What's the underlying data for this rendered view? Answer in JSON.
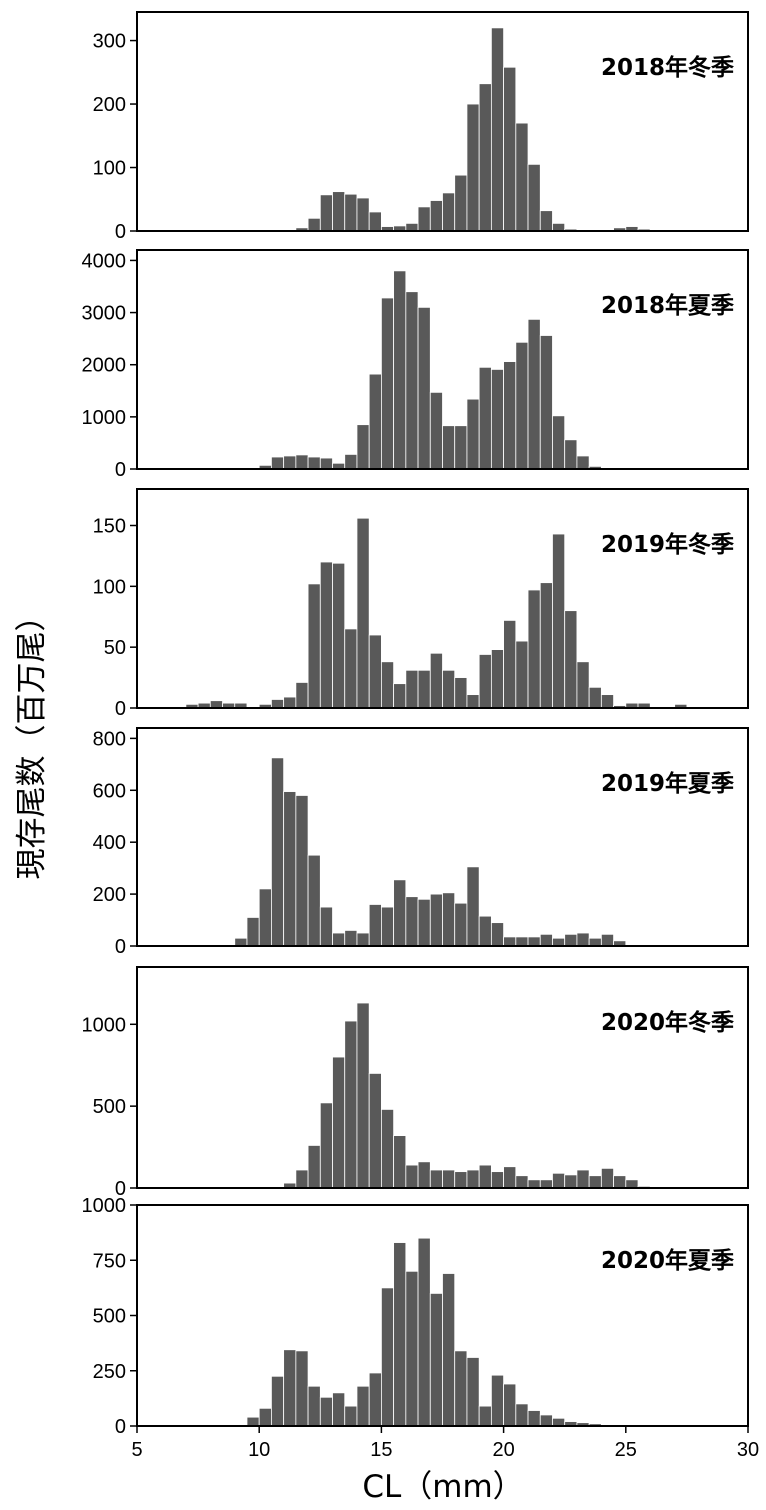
{
  "chart_data": {
    "type": "bar",
    "x_axis": {
      "label": "CL（mm）",
      "lim": [
        5,
        30
      ],
      "ticks": [
        5,
        10,
        15,
        20,
        25,
        30
      ],
      "bin_width": 0.5
    },
    "y_axis": {
      "label": "現存尾数（百万尾）"
    },
    "bar_color": "#595959",
    "panels": [
      {
        "label": "2018年冬季",
        "ylim": [
          0,
          345
        ],
        "yticks": [
          0,
          100,
          200,
          300
        ],
        "bins": [
          [
            11,
            2
          ],
          [
            11.5,
            5
          ],
          [
            12,
            20
          ],
          [
            12.5,
            57
          ],
          [
            13,
            62
          ],
          [
            13.5,
            58
          ],
          [
            14,
            52
          ],
          [
            14.5,
            30
          ],
          [
            15,
            7
          ],
          [
            15.5,
            8
          ],
          [
            16,
            12
          ],
          [
            16.5,
            38
          ],
          [
            17,
            48
          ],
          [
            17.5,
            60
          ],
          [
            18,
            88
          ],
          [
            18.5,
            200
          ],
          [
            19,
            232
          ],
          [
            19.5,
            320
          ],
          [
            20,
            258
          ],
          [
            20.5,
            170
          ],
          [
            21,
            105
          ],
          [
            21.5,
            32
          ],
          [
            22,
            12
          ],
          [
            22.5,
            3
          ],
          [
            23,
            2
          ],
          [
            24,
            2
          ],
          [
            24.5,
            5
          ],
          [
            25,
            7
          ],
          [
            25.5,
            3
          ],
          [
            26,
            2
          ]
        ]
      },
      {
        "label": "2018年夏季",
        "ylim": [
          0,
          4200
        ],
        "yticks": [
          0,
          1000,
          2000,
          3000,
          4000
        ],
        "bins": [
          [
            9.5,
            10
          ],
          [
            10,
            70
          ],
          [
            10.5,
            230
          ],
          [
            11,
            250
          ],
          [
            11.5,
            270
          ],
          [
            12,
            230
          ],
          [
            12.5,
            210
          ],
          [
            13,
            110
          ],
          [
            13.5,
            280
          ],
          [
            14,
            850
          ],
          [
            14.5,
            1820
          ],
          [
            15,
            3280
          ],
          [
            15.5,
            3800
          ],
          [
            16,
            3400
          ],
          [
            16.5,
            3100
          ],
          [
            17,
            1470
          ],
          [
            17.5,
            830
          ],
          [
            18,
            830
          ],
          [
            18.5,
            1340
          ],
          [
            19,
            1950
          ],
          [
            19.5,
            1910
          ],
          [
            20,
            2060
          ],
          [
            20.5,
            2430
          ],
          [
            21,
            2870
          ],
          [
            21.5,
            2560
          ],
          [
            22,
            1020
          ],
          [
            22.5,
            560
          ],
          [
            23,
            250
          ],
          [
            23.5,
            50
          ],
          [
            24,
            10
          ],
          [
            26.5,
            10
          ]
        ]
      },
      {
        "label": "2019年冬季",
        "ylim": [
          0,
          180
        ],
        "yticks": [
          0,
          50,
          100,
          150
        ],
        "bins": [
          [
            7,
            3
          ],
          [
            7.5,
            4
          ],
          [
            8,
            6
          ],
          [
            8.5,
            4
          ],
          [
            9,
            4
          ],
          [
            10,
            3
          ],
          [
            10.5,
            7
          ],
          [
            11,
            9
          ],
          [
            11.5,
            21
          ],
          [
            12,
            102
          ],
          [
            12.5,
            120
          ],
          [
            13,
            119
          ],
          [
            13.5,
            65
          ],
          [
            14,
            156
          ],
          [
            14.5,
            60
          ],
          [
            15,
            38
          ],
          [
            15.5,
            20
          ],
          [
            16,
            31
          ],
          [
            16.5,
            31
          ],
          [
            17,
            45
          ],
          [
            17.5,
            31
          ],
          [
            18,
            25
          ],
          [
            18.5,
            11
          ],
          [
            19,
            44
          ],
          [
            19.5,
            48
          ],
          [
            20,
            72
          ],
          [
            20.5,
            55
          ],
          [
            21,
            97
          ],
          [
            21.5,
            103
          ],
          [
            22,
            143
          ],
          [
            22.5,
            80
          ],
          [
            23,
            38
          ],
          [
            23.5,
            17
          ],
          [
            24,
            11
          ],
          [
            24.5,
            2
          ],
          [
            25,
            4
          ],
          [
            25.5,
            4
          ],
          [
            27,
            3
          ]
        ]
      },
      {
        "label": "2019年夏季",
        "ylim": [
          0,
          840
        ],
        "yticks": [
          0,
          200,
          400,
          600,
          800
        ],
        "bins": [
          [
            8,
            3
          ],
          [
            9,
            30
          ],
          [
            9.5,
            110
          ],
          [
            10,
            220
          ],
          [
            10.5,
            725
          ],
          [
            11,
            595
          ],
          [
            11.5,
            580
          ],
          [
            12,
            350
          ],
          [
            12.5,
            150
          ],
          [
            13,
            50
          ],
          [
            13.5,
            60
          ],
          [
            14,
            50
          ],
          [
            14.5,
            160
          ],
          [
            15,
            150
          ],
          [
            15.5,
            255
          ],
          [
            16,
            190
          ],
          [
            16.5,
            180
          ],
          [
            17,
            200
          ],
          [
            17.5,
            205
          ],
          [
            18,
            165
          ],
          [
            18.5,
            305
          ],
          [
            19,
            115
          ],
          [
            19.5,
            90
          ],
          [
            20,
            35
          ],
          [
            20.5,
            35
          ],
          [
            21,
            35
          ],
          [
            21.5,
            45
          ],
          [
            22,
            30
          ],
          [
            22.5,
            45
          ],
          [
            23,
            50
          ],
          [
            23.5,
            30
          ],
          [
            24,
            45
          ],
          [
            24.5,
            20
          ],
          [
            25.5,
            3
          ]
        ]
      },
      {
        "label": "2020年冬季",
        "ylim": [
          0,
          1350
        ],
        "yticks": [
          0,
          500,
          1000
        ],
        "bins": [
          [
            9,
            2
          ],
          [
            11,
            30
          ],
          [
            11.5,
            110
          ],
          [
            12,
            260
          ],
          [
            12.5,
            520
          ],
          [
            13,
            800
          ],
          [
            13.5,
            1020
          ],
          [
            14,
            1130
          ],
          [
            14.5,
            700
          ],
          [
            15,
            480
          ],
          [
            15.5,
            320
          ],
          [
            16,
            140
          ],
          [
            16.5,
            160
          ],
          [
            17,
            110
          ],
          [
            17.5,
            110
          ],
          [
            18,
            100
          ],
          [
            18.5,
            110
          ],
          [
            19,
            140
          ],
          [
            19.5,
            100
          ],
          [
            20,
            130
          ],
          [
            20.5,
            75
          ],
          [
            21,
            50
          ],
          [
            21.5,
            50
          ],
          [
            22,
            90
          ],
          [
            22.5,
            80
          ],
          [
            23,
            110
          ],
          [
            23.5,
            75
          ],
          [
            24,
            120
          ],
          [
            24.5,
            75
          ],
          [
            25,
            50
          ],
          [
            25.5,
            10
          ],
          [
            26,
            5
          ]
        ]
      },
      {
        "label": "2020年夏季",
        "ylim": [
          0,
          1000
        ],
        "yticks": [
          0,
          250,
          500,
          750,
          1000
        ],
        "bins": [
          [
            9.5,
            40
          ],
          [
            10,
            80
          ],
          [
            10.5,
            225
          ],
          [
            11,
            345
          ],
          [
            11.5,
            340
          ],
          [
            12,
            180
          ],
          [
            12.5,
            130
          ],
          [
            13,
            150
          ],
          [
            13.5,
            90
          ],
          [
            14,
            180
          ],
          [
            14.5,
            240
          ],
          [
            15,
            625
          ],
          [
            15.5,
            830
          ],
          [
            16,
            700
          ],
          [
            16.5,
            850
          ],
          [
            17,
            600
          ],
          [
            17.5,
            690
          ],
          [
            18,
            340
          ],
          [
            18.5,
            310
          ],
          [
            19,
            90
          ],
          [
            19.5,
            230
          ],
          [
            20,
            190
          ],
          [
            20.5,
            100
          ],
          [
            21,
            70
          ],
          [
            21.5,
            50
          ],
          [
            22,
            35
          ],
          [
            22.5,
            20
          ],
          [
            23,
            15
          ],
          [
            23.5,
            10
          ],
          [
            24,
            5
          ]
        ]
      }
    ]
  }
}
